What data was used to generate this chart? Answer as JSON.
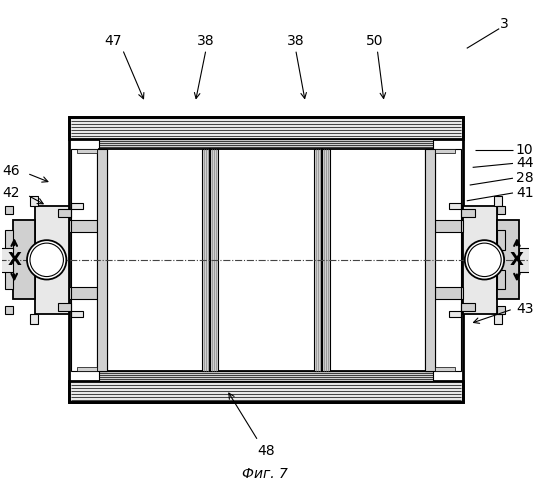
{
  "bg_color": "#ffffff",
  "line_color": "#000000",
  "title": "Фиг. 7",
  "gray1": "#f5f5f5",
  "gray2": "#e8e8e8",
  "gray3": "#d0d0d0",
  "gray4": "#b8b8b8"
}
